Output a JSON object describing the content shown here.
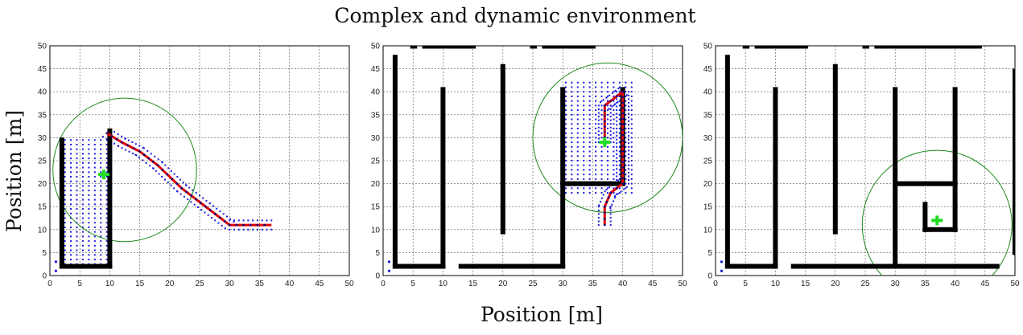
{
  "title": "Complex and dynamic environment",
  "xlabel": "Position [m]",
  "ylabel": "Position [m]",
  "colors": {
    "obstacle": "#000000",
    "explored": "#1a1adf",
    "path": "#e00000",
    "path_nodes": "#00008b",
    "robot": "#22dd22",
    "sensor_range": "#1a8a1a",
    "grid": "#555555"
  },
  "chart_data": [
    {
      "type": "scatter",
      "panel": "left",
      "xlim": [
        0,
        50
      ],
      "ylim": [
        0,
        50
      ],
      "xticks": [
        0,
        5,
        10,
        15,
        20,
        25,
        30,
        35,
        40,
        45,
        50
      ],
      "yticks": [
        0,
        5,
        10,
        15,
        20,
        25,
        30,
        35,
        40,
        45,
        50
      ],
      "grid": true,
      "obstacles": [
        [
          [
            2,
            2
          ],
          [
            2,
            29.5
          ]
        ],
        [
          [
            2,
            2
          ],
          [
            10,
            2
          ]
        ],
        [
          [
            10,
            2
          ],
          [
            10,
            31.5
          ]
        ]
      ],
      "obstacle_dashed": [],
      "explored_region": {
        "x": [
          2.5,
          9.5
        ],
        "y": [
          2.5,
          29.5
        ]
      },
      "explored_band_along_path": true,
      "path": [
        [
          9.5,
          31
        ],
        [
          12,
          29
        ],
        [
          15,
          27
        ],
        [
          18,
          24
        ],
        [
          22,
          19
        ],
        [
          26,
          15
        ],
        [
          30,
          11
        ],
        [
          37,
          11
        ]
      ],
      "robot": {
        "x": 9,
        "y": 22
      },
      "sensor_range": {
        "cx": 12.5,
        "cy": 23,
        "r": 12
      },
      "start_markers": [
        [
          1,
          1
        ],
        [
          1,
          3
        ]
      ]
    },
    {
      "type": "scatter",
      "panel": "middle",
      "xlim": [
        0,
        50
      ],
      "ylim": [
        0,
        50
      ],
      "xticks": [
        0,
        5,
        10,
        15,
        20,
        25,
        30,
        35,
        40,
        45,
        50
      ],
      "yticks": [
        0,
        5,
        10,
        15,
        20,
        25,
        30,
        35,
        40,
        45,
        50
      ],
      "grid": true,
      "obstacles": [
        [
          [
            2,
            2
          ],
          [
            2,
            47.5
          ]
        ],
        [
          [
            2,
            2
          ],
          [
            10,
            2
          ]
        ],
        [
          [
            10,
            2
          ],
          [
            10,
            40.5
          ]
        ],
        [
          [
            20,
            9.5
          ],
          [
            20,
            45.5
          ]
        ],
        [
          [
            13,
            2
          ],
          [
            30,
            2
          ]
        ],
        [
          [
            30,
            2
          ],
          [
            30,
            40.5
          ]
        ],
        [
          [
            30,
            20
          ],
          [
            40,
            20
          ]
        ],
        [
          [
            40,
            20
          ],
          [
            40,
            40.5
          ]
        ]
      ],
      "obstacle_dashed": [
        [
          [
            5,
            50
          ],
          [
            5.2,
            50
          ]
        ],
        [
          [
            7,
            50
          ],
          [
            15,
            50
          ]
        ],
        [
          [
            25,
            50
          ],
          [
            25.2,
            50
          ]
        ],
        [
          [
            27,
            50
          ],
          [
            35,
            50
          ]
        ]
      ],
      "explored_region": {
        "x": [
          30.5,
          41.5
        ],
        "y": [
          18,
          42
        ]
      },
      "explored_band_along_path": true,
      "path": [
        [
          37,
          11
        ],
        [
          37,
          15
        ],
        [
          38,
          18
        ],
        [
          40,
          20
        ],
        [
          40,
          40
        ],
        [
          38,
          38
        ],
        [
          37,
          37
        ],
        [
          37,
          29
        ]
      ],
      "robot": {
        "x": 37,
        "y": 29
      },
      "sensor_range": {
        "cx": 37.5,
        "cy": 30,
        "r": 12.5
      },
      "start_markers": [
        [
          1,
          1
        ],
        [
          1,
          3
        ]
      ]
    },
    {
      "type": "scatter",
      "panel": "right",
      "xlim": [
        0,
        50
      ],
      "ylim": [
        0,
        50
      ],
      "xticks": [
        0,
        5,
        10,
        15,
        20,
        25,
        30,
        35,
        40,
        45,
        50
      ],
      "yticks": [
        0,
        5,
        10,
        15,
        20,
        25,
        30,
        35,
        40,
        45,
        50
      ],
      "grid": true,
      "obstacles": [
        [
          [
            2,
            2
          ],
          [
            2,
            47.5
          ]
        ],
        [
          [
            2,
            2
          ],
          [
            10,
            2
          ]
        ],
        [
          [
            10,
            2
          ],
          [
            10,
            40.5
          ]
        ],
        [
          [
            20,
            9.5
          ],
          [
            20,
            45.5
          ]
        ],
        [
          [
            13,
            2
          ],
          [
            47,
            2
          ]
        ],
        [
          [
            30,
            2
          ],
          [
            30,
            40.5
          ]
        ],
        [
          [
            30,
            20
          ],
          [
            40,
            20
          ]
        ],
        [
          [
            40,
            10
          ],
          [
            40,
            40.5
          ]
        ],
        [
          [
            35,
            10
          ],
          [
            40,
            10
          ]
        ],
        [
          [
            35,
            10
          ],
          [
            35,
            15.5
          ]
        ],
        [
          [
            50,
            5
          ],
          [
            50,
            44.5
          ]
        ]
      ],
      "obstacle_dashed": [
        [
          [
            5,
            50
          ],
          [
            5.2,
            50
          ]
        ],
        [
          [
            7,
            50
          ],
          [
            15,
            50
          ]
        ],
        [
          [
            25,
            50
          ],
          [
            25.2,
            50
          ]
        ],
        [
          [
            27,
            50
          ],
          [
            44,
            50
          ]
        ]
      ],
      "explored_region": null,
      "explored_band_along_path": false,
      "path": [],
      "robot": {
        "x": 37,
        "y": 12
      },
      "sensor_range": {
        "cx": 37,
        "cy": 11,
        "r": 12.5
      },
      "start_markers": [
        [
          1,
          1
        ],
        [
          1,
          3
        ]
      ]
    }
  ]
}
